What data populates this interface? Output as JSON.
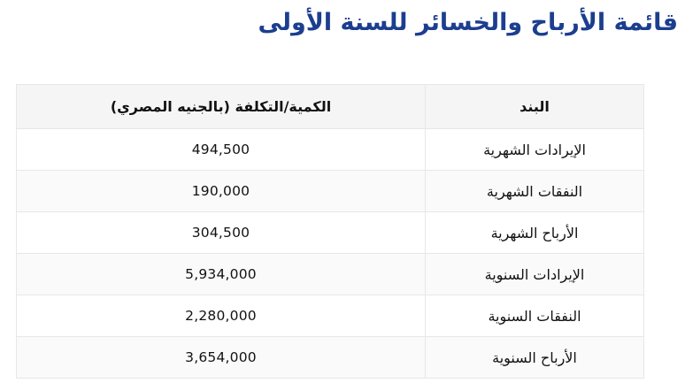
{
  "page": {
    "title": "قائمة الأرباح والخسائر للسنة الأولى"
  },
  "colors": {
    "title_text": "#1c3e8f",
    "header_bg": "#f5f5f5",
    "row_alt_bg": "#fafafa",
    "border": "#e7e7e7",
    "body_text": "#111111"
  },
  "table": {
    "columns": {
      "item": "البند",
      "value": "الكمية/التكلفة (بالجنيه المصري)"
    },
    "rows": [
      {
        "item": "الإيرادات الشهرية",
        "value": "494,500"
      },
      {
        "item": "النفقات الشهرية",
        "value": "190,000"
      },
      {
        "item": "الأرباح الشهرية",
        "value": "304,500"
      },
      {
        "item": "الإيرادات السنوية",
        "value": "5,934,000"
      },
      {
        "item": "النفقات السنوية",
        "value": "2,280,000"
      },
      {
        "item": "الأرباح السنوية",
        "value": "3,654,000"
      }
    ]
  }
}
